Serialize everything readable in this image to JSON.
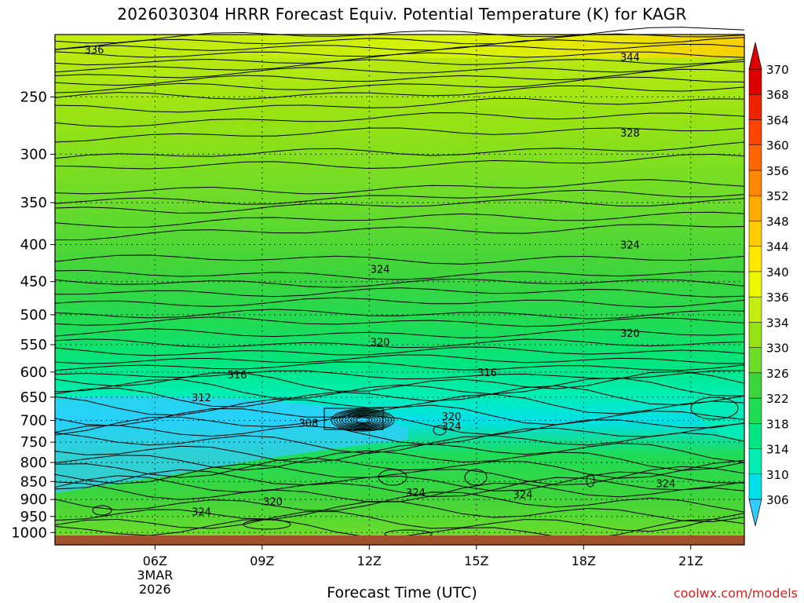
{
  "chart_data": {
    "type": "heatmap",
    "title": "2026030304 HRRR Forecast Equiv. Potential Temperature (K) for KAGR",
    "xlabel": "Forecast Time (UTC)",
    "ylabel": "",
    "x_ticks": [
      "06Z",
      "09Z",
      "12Z",
      "15Z",
      "18Z",
      "21Z"
    ],
    "x_date_label": [
      "3MAR",
      "2026"
    ],
    "y_ticks": [
      250,
      300,
      350,
      400,
      450,
      500,
      550,
      600,
      650,
      700,
      750,
      800,
      850,
      900,
      950,
      1000
    ],
    "y_axis": "pressure (hPa), log scale, inverted",
    "colorbar": {
      "levels": [
        306,
        310,
        314,
        318,
        322,
        326,
        330,
        334,
        336,
        340,
        344,
        348,
        352,
        356,
        360,
        364,
        368,
        370
      ],
      "colors": [
        "#33ccff",
        "#00e0e8",
        "#00eeb4",
        "#00e683",
        "#1fdc55",
        "#3cd43c",
        "#6cdc2a",
        "#94e214",
        "#c4ec10",
        "#ecf800",
        "#ffe800",
        "#ffcc00",
        "#ffaa00",
        "#ff8800",
        "#ff6600",
        "#ff4400",
        "#ee2200",
        "#dd0000"
      ]
    },
    "contour_labels": [
      {
        "text": "336",
        "time": "04Z",
        "p": 215
      },
      {
        "text": "344",
        "time": "19Z",
        "p": 220
      },
      {
        "text": "328",
        "time": "19Z",
        "p": 280
      },
      {
        "text": "324",
        "time": "19Z",
        "p": 400
      },
      {
        "text": "324",
        "time": "12Z",
        "p": 432
      },
      {
        "text": "320",
        "time": "12Z",
        "p": 545
      },
      {
        "text": "320",
        "time": "19Z",
        "p": 530
      },
      {
        "text": "316",
        "time": "08Z",
        "p": 605
      },
      {
        "text": "316",
        "time": "15Z",
        "p": 600
      },
      {
        "text": "312",
        "time": "07Z",
        "p": 650
      },
      {
        "text": "308",
        "time": "10Z",
        "p": 705
      },
      {
        "text": "320",
        "time": "14Z",
        "p": 690
      },
      {
        "text": "324",
        "time": "14Z",
        "p": 712
      },
      {
        "text": "324",
        "time": "13Z",
        "p": 880
      },
      {
        "text": "324",
        "time": "16Z",
        "p": 885
      },
      {
        "text": "324",
        "time": "20Z",
        "p": 855
      },
      {
        "text": "320",
        "time": "09Z",
        "p": 905
      },
      {
        "text": "324",
        "time": "07Z",
        "p": 935
      }
    ],
    "grid": true,
    "ground_color": "#a0522d"
  },
  "credit": "coolwx.com/models"
}
